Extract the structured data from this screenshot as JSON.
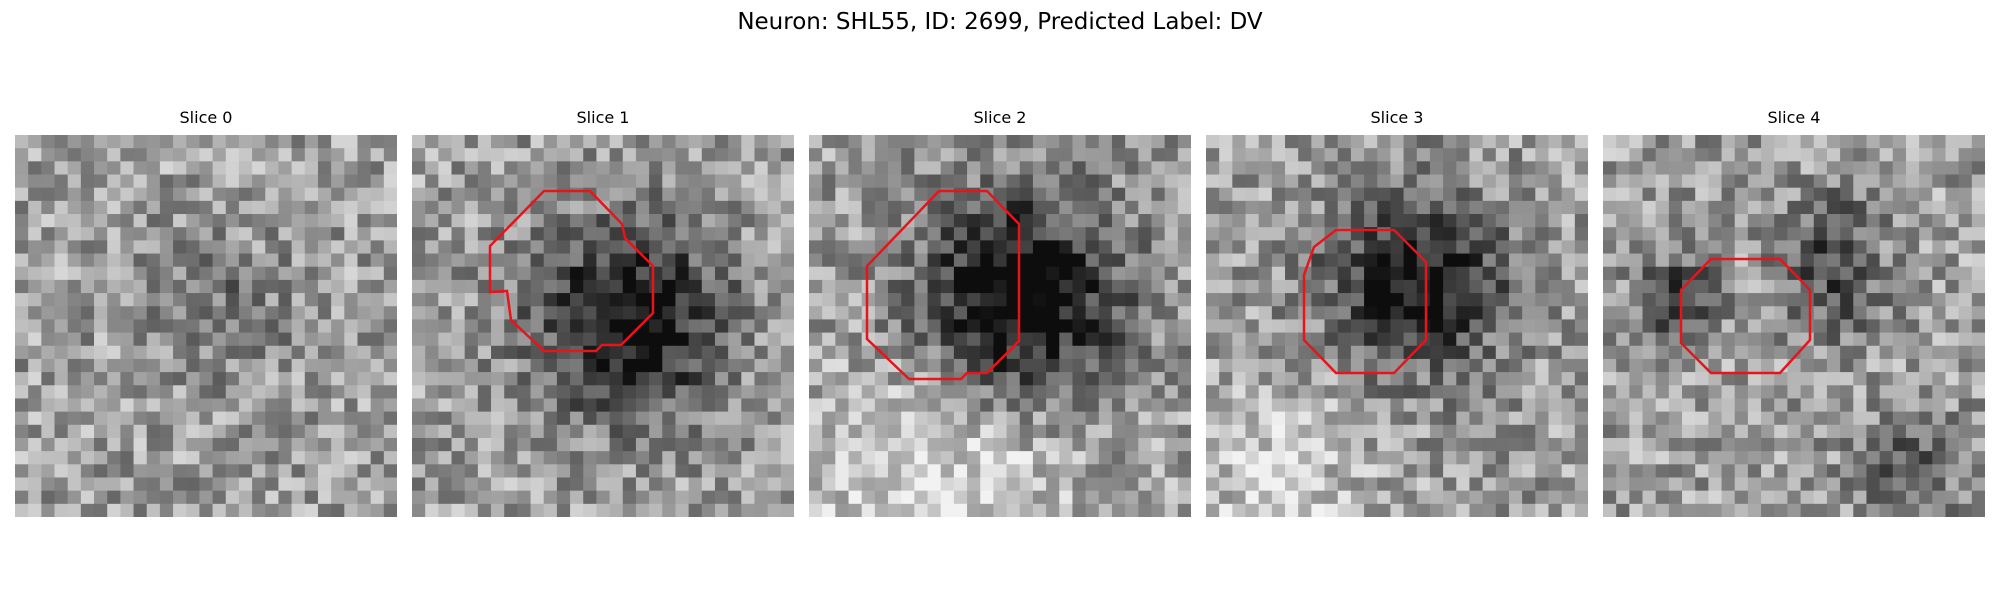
{
  "figure": {
    "title": "Neuron: SHL55, ID: 2699, Predicted Label: DV"
  },
  "panels": [
    {
      "title": "Slice 0",
      "contour": false
    },
    {
      "title": "Slice 1",
      "contour": true
    },
    {
      "title": "Slice 2",
      "contour": true
    },
    {
      "title": "Slice 3",
      "contour": true
    },
    {
      "title": "Slice 4",
      "contour": true
    }
  ],
  "style": {
    "contour_color": "#e8141b",
    "colormap": "gray"
  }
}
